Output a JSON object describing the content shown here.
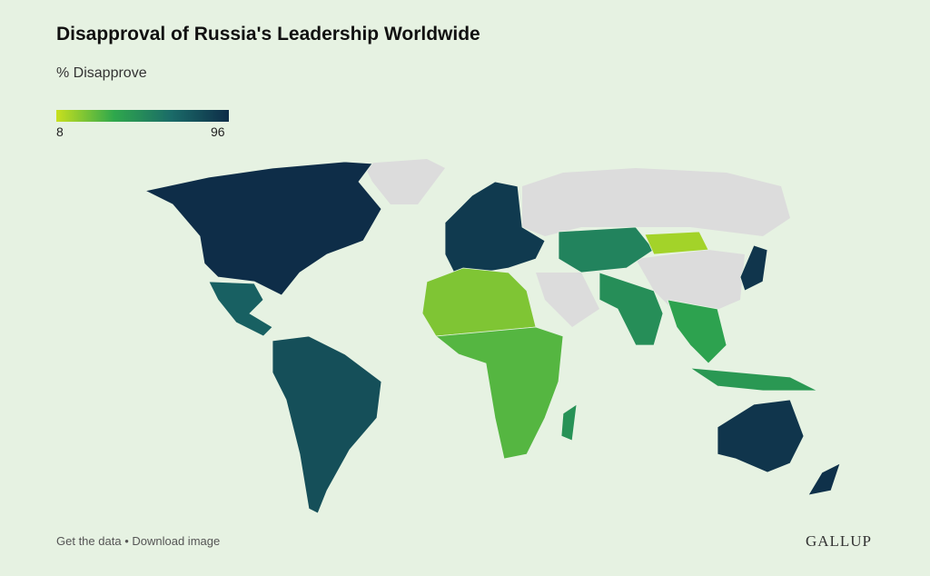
{
  "header": {
    "title": "Disapproval of Russia's Leadership Worldwide",
    "subtitle": "% Disapprove"
  },
  "legend": {
    "min": 8,
    "max": 96,
    "colors": [
      "#c8e01e",
      "#2fa84c",
      "#1a6b68",
      "#0e2d48"
    ]
  },
  "map": {
    "values": [
      96,
      72,
      80,
      90,
      22,
      30,
      55,
      15,
      50,
      40,
      45,
      92,
      92,
      94,
      48
    ],
    "no_data_color": "#dcdcdc"
  },
  "footer": {
    "links": [
      "Get the data",
      "Download image"
    ],
    "separator": "•",
    "brand": "GALLUP"
  }
}
